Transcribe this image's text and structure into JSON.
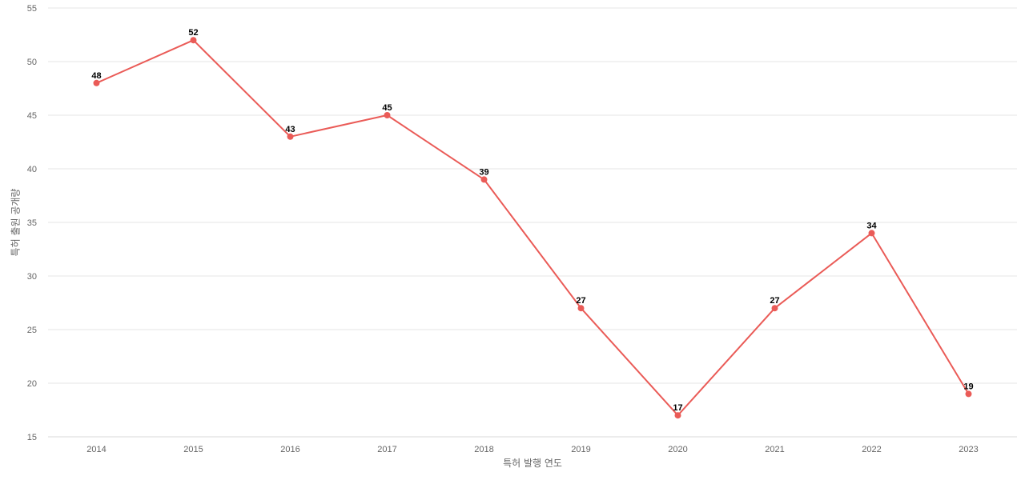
{
  "chart_data": {
    "type": "line",
    "title": "",
    "xlabel": "특허 발행 연도",
    "ylabel": "특허 출원 공개량",
    "categories": [
      "2014",
      "2015",
      "2016",
      "2017",
      "2018",
      "2019",
      "2020",
      "2021",
      "2022",
      "2023"
    ],
    "series": [
      {
        "values": [
          48,
          52,
          43,
          45,
          39,
          27,
          17,
          27,
          34,
          19
        ],
        "color": "#ea5b57"
      }
    ],
    "ylim": [
      15,
      55
    ],
    "yticks": [
      15,
      20,
      25,
      30,
      35,
      40,
      45,
      50,
      55
    ],
    "grid": true,
    "data_labels": true
  }
}
